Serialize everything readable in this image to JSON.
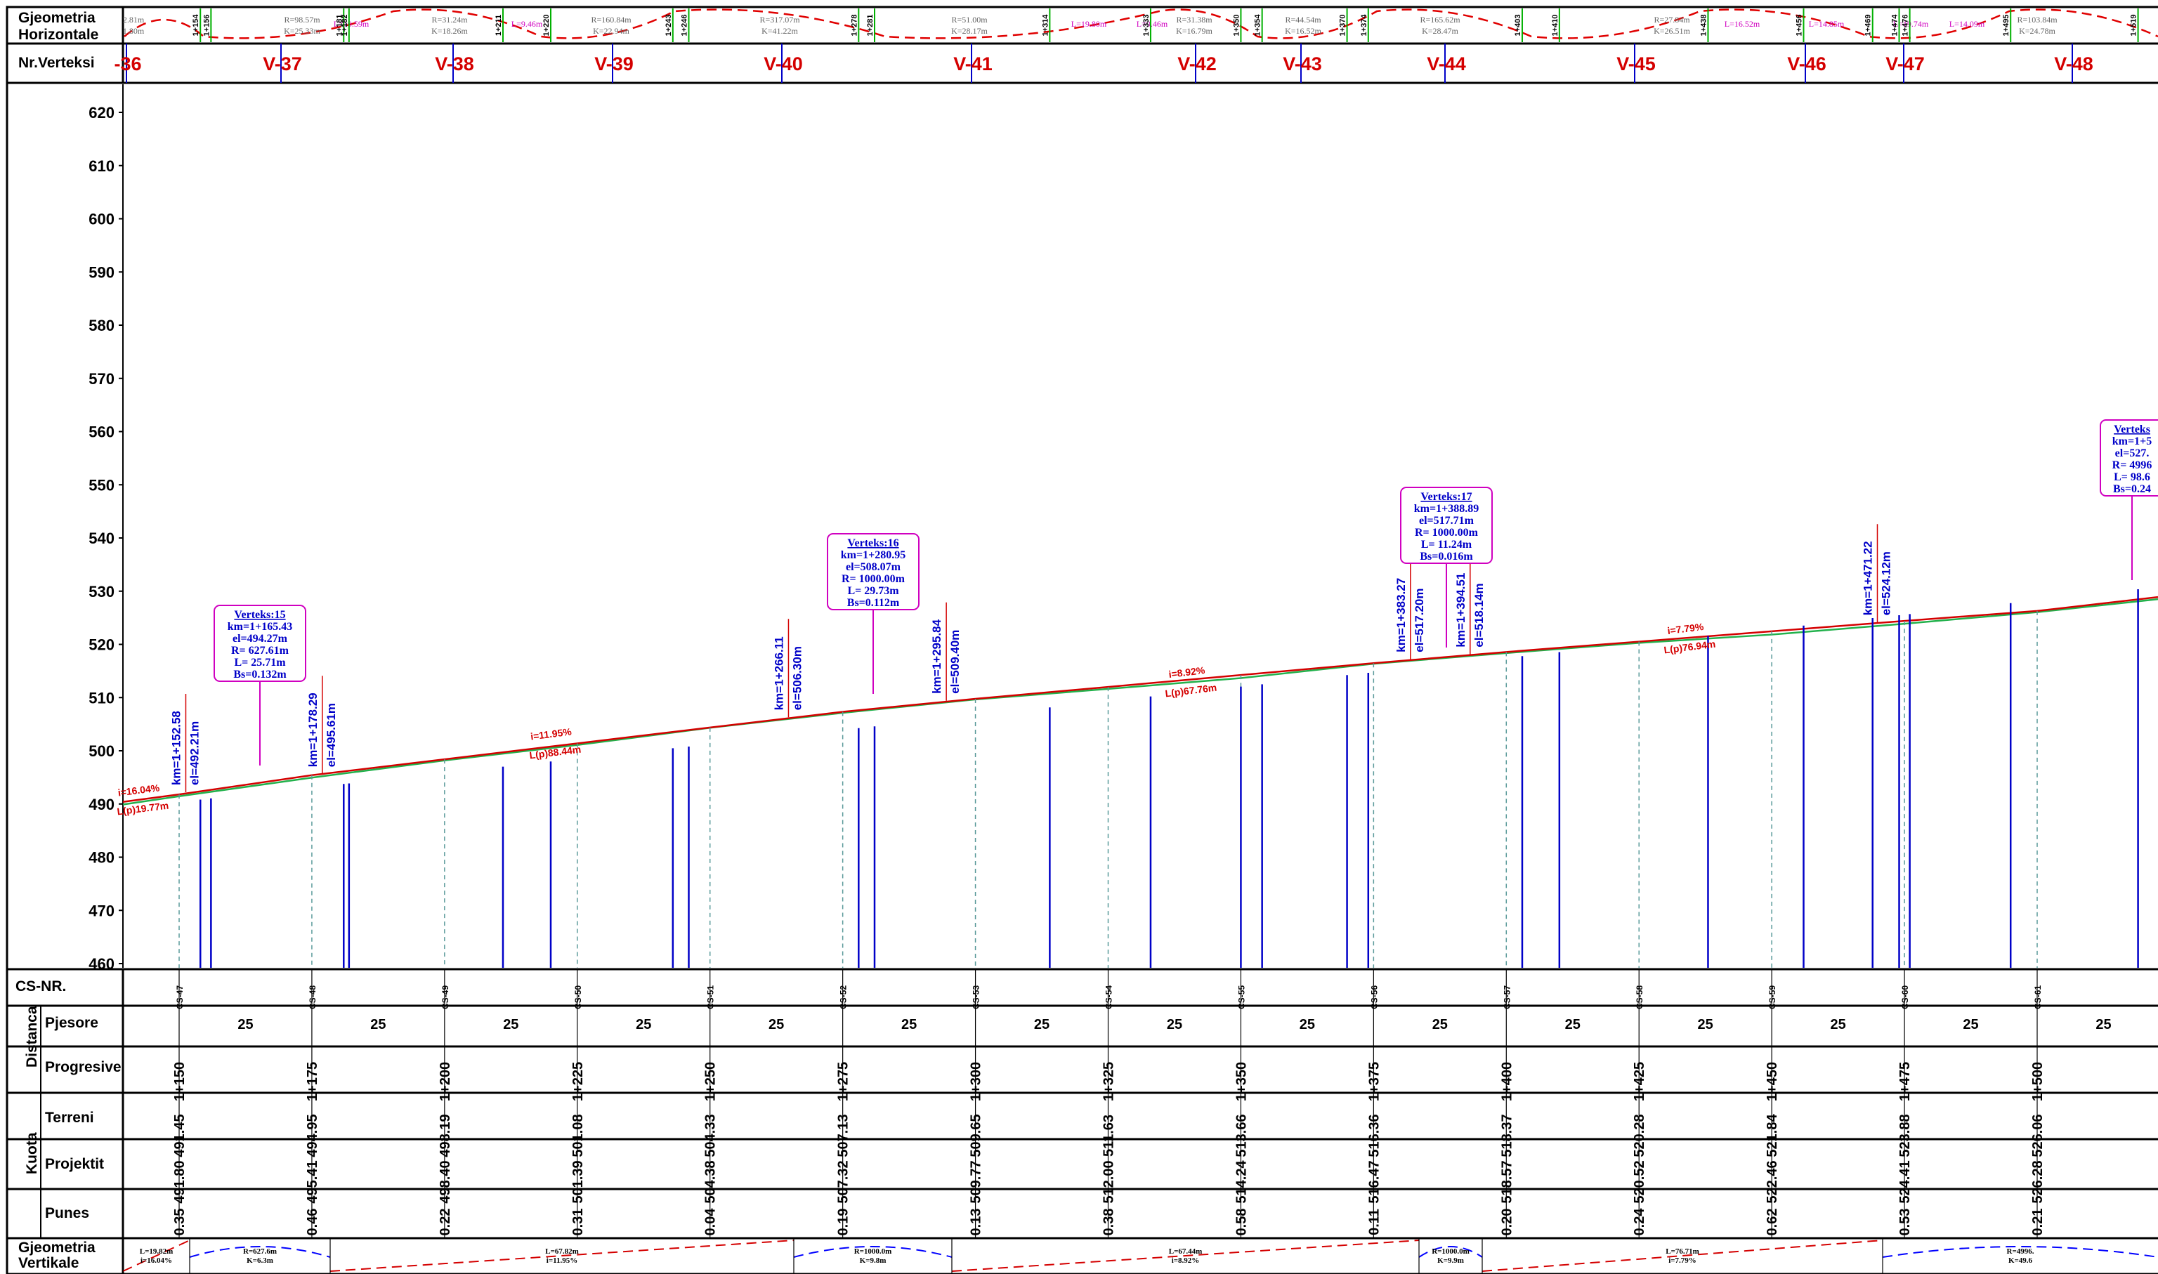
{
  "labels": {
    "geom_horizontal_1": "Gjeometria",
    "geom_horizontal_2": "Horizontale",
    "vertex_nr": "Nr.Verteksi",
    "cs_nr": "CS-NR.",
    "distanca": "Distanca",
    "pjesore": "Pjesore",
    "progresive": "Progresive",
    "kuota": "Kuota",
    "terreni": "Terreni",
    "projektit": "Projektit",
    "punes": "Punes",
    "geom_vertical_1": "Gjeometria",
    "geom_vertical_2": "Vertikale"
  },
  "colors": {
    "grid": "#000000",
    "vertex_label": "#d40000",
    "annotation_blue": "#0000c8",
    "annotation_magenta": "#d000c0",
    "terrain_line": "#22b14c",
    "design_line": "#d40000",
    "cs_dashed": "#5a9a9a",
    "horizontal_curve": "#e00000",
    "station_tick": "#00b000"
  },
  "elevation_axis": {
    "ticks": [
      "620",
      "610",
      "600",
      "590",
      "580",
      "570",
      "560",
      "550",
      "540",
      "530",
      "520",
      "510",
      "500",
      "490",
      "480",
      "470",
      "460"
    ]
  },
  "vertices": [
    {
      "label": "-36"
    },
    {
      "label": "V-37"
    },
    {
      "label": "V-38"
    },
    {
      "label": "V-39"
    },
    {
      "label": "V-40"
    },
    {
      "label": "V-41"
    },
    {
      "label": "V-42"
    },
    {
      "label": "V-43"
    },
    {
      "label": "V-44"
    },
    {
      "label": "V-45"
    },
    {
      "label": "V-46"
    },
    {
      "label": "V-47"
    },
    {
      "label": "V-48"
    }
  ],
  "horizontal_geometry": {
    "radius_labels": [
      {
        "r": "2.81m",
        "k": "1.80m"
      },
      {
        "r": "R=98.57m",
        "k": "K=25.33m"
      },
      {
        "r": "R=31.24m",
        "k": "K=18.26m"
      },
      {
        "r": "R=160.84m",
        "k": "K=22.94m"
      },
      {
        "r": "R=317.07m",
        "k": "K=41.22m"
      },
      {
        "r": "R=51.00m",
        "k": "K=28.17m"
      },
      {
        "r": "R=31.38m",
        "k": "K=16.79m"
      },
      {
        "r": "R=44.54m",
        "k": "K=16.52m"
      },
      {
        "r": "R=165.62m",
        "k": "K=28.47m"
      },
      {
        "r": "R=27.84m",
        "k": "K=26.51m"
      },
      {
        "r": "R=103.84m",
        "k": "K=24.78m"
      }
    ],
    "tangent_labels": [
      "L=10.59m",
      "L=9.46m",
      "L=19.80m",
      "L=9.46m",
      "L=16.52m",
      "L=14.85m",
      "L=19.74m",
      "L=14.09m"
    ],
    "stations": [
      "1+154",
      "1+156",
      "1+181",
      "1+182",
      "1+211",
      "1+220",
      "1+243",
      "1+246",
      "1+278",
      "1+281",
      "1+314",
      "1+333",
      "1+350",
      "1+354",
      "1+370",
      "1+374",
      "1+403",
      "1+410",
      "1+438",
      "1+456",
      "1+469",
      "1+474",
      "1+476",
      "1+495",
      "1+519"
    ]
  },
  "vertical_curves": [
    {
      "title": "Verteks:15",
      "km": "km=1+165.43",
      "el": "el=494.27m",
      "r": "R= 627.61m",
      "l": "L= 25.71m",
      "bs": "Bs=0.132m"
    },
    {
      "title": "Verteks:16",
      "km": "km=1+280.95",
      "el": "el=508.07m",
      "r": "R= 1000.00m",
      "l": "L= 29.73m",
      "bs": "Bs=0.112m"
    },
    {
      "title": "Verteks:17",
      "km": "km=1+388.89",
      "el": "el=517.71m",
      "r": "R= 1000.00m",
      "l": "L= 11.24m",
      "bs": "Bs=0.016m"
    },
    {
      "title": "Verteks",
      "km": "km=1+5",
      "el": "el=527.",
      "r": "R= 4996",
      "l": "L= 98.6",
      "bs": "Bs=0.24"
    }
  ],
  "tangent_points": [
    {
      "km": "km=1+152.58",
      "el": "el=492.21m"
    },
    {
      "km": "km=1+178.29",
      "el": "el=495.61m"
    },
    {
      "km": "km=1+266.11",
      "el": "el=506.30m"
    },
    {
      "km": "km=1+295.84",
      "el": "el=509.40m"
    },
    {
      "km": "km=1+383.27",
      "el": "el=517.20m"
    },
    {
      "km": "km=1+394.51",
      "el": "el=518.14m"
    },
    {
      "km": "km=1+471.22",
      "el": "el=524.12m"
    }
  ],
  "grade_labels": [
    {
      "grade": "i=16.04%",
      "length": "L(p)19.77m"
    },
    {
      "grade": "i=11.95%",
      "length": "L(p)88.44m"
    },
    {
      "grade": "i=8.92%",
      "length": "L(p)67.76m"
    },
    {
      "grade": "i=7.79%",
      "length": "L(p)76.94m"
    }
  ],
  "cross_sections": [
    {
      "cs": "CS-47",
      "pjesore": "25",
      "progresive": "1+150",
      "terreni": "491.45",
      "projektit": "491.80",
      "punes": "0.35"
    },
    {
      "cs": "CS-48",
      "pjesore": "25",
      "progresive": "1+175",
      "terreni": "494.95",
      "projektit": "495.41",
      "punes": "0.46"
    },
    {
      "cs": "CS-49",
      "pjesore": "25",
      "progresive": "1+200",
      "terreni": "498.19",
      "projektit": "498.40",
      "punes": "0.22"
    },
    {
      "cs": "CS-50",
      "pjesore": "25",
      "progresive": "1+225",
      "terreni": "501.08",
      "projektit": "501.39",
      "punes": "0.31"
    },
    {
      "cs": "CS-51",
      "pjesore": "25",
      "progresive": "1+250",
      "terreni": "504.33",
      "projektit": "504.38",
      "punes": "0.04"
    },
    {
      "cs": "CS-52",
      "pjesore": "25",
      "progresive": "1+275",
      "terreni": "507.13",
      "projektit": "507.32",
      "punes": "0.19"
    },
    {
      "cs": "CS-53",
      "pjesore": "25",
      "progresive": "1+300",
      "terreni": "509.65",
      "projektit": "509.77",
      "punes": "0.13"
    },
    {
      "cs": "CS-54",
      "pjesore": "25",
      "progresive": "1+325",
      "terreni": "511.63",
      "projektit": "512.00",
      "punes": "0.38"
    },
    {
      "cs": "CS-55",
      "pjesore": "25",
      "progresive": "1+350",
      "terreni": "513.66",
      "projektit": "514.24",
      "punes": "0.58"
    },
    {
      "cs": "CS-56",
      "pjesore": "25",
      "progresive": "1+375",
      "terreni": "516.36",
      "projektit": "516.47",
      "punes": "0.11"
    },
    {
      "cs": "CS-57",
      "pjesore": "25",
      "progresive": "1+400",
      "terreni": "518.37",
      "projektit": "518.57",
      "punes": "0.20"
    },
    {
      "cs": "CS-58",
      "pjesore": "25",
      "progresive": "1+425",
      "terreni": "520.28",
      "projektit": "520.52",
      "punes": "0.24"
    },
    {
      "cs": "CS-59",
      "pjesore": "25",
      "progresive": "1+450",
      "terreni": "521.84",
      "projektit": "522.46",
      "punes": "0.62"
    },
    {
      "cs": "CS-60",
      "pjesore": "25",
      "progresive": "1+475",
      "terreni": "523.88",
      "projektit": "524.41",
      "punes": "0.53"
    },
    {
      "cs": "CS-61",
      "pjesore": "25",
      "progresive": "1+500",
      "terreni": "526.06",
      "projektit": "526.28",
      "punes": "0.21"
    }
  ],
  "vertical_geometry": [
    {
      "line1": "L=19.82m",
      "line2": "i=16.04%"
    },
    {
      "line1": "R=627.6m",
      "line2": "K=6.3m"
    },
    {
      "line1": "L=67.82m",
      "line2": "i=11.95%"
    },
    {
      "line1": "R=1000.0m",
      "line2": "K=9.8m"
    },
    {
      "line1": "L=67.44m",
      "line2": "i=8.92%"
    },
    {
      "line1": "R=1000.0m",
      "line2": "K=9.9m"
    },
    {
      "line1": "L=76.71m",
      "line2": "i=7.79%"
    },
    {
      "line1": "R=4996.",
      "line2": "K=49.6"
    }
  ]
}
